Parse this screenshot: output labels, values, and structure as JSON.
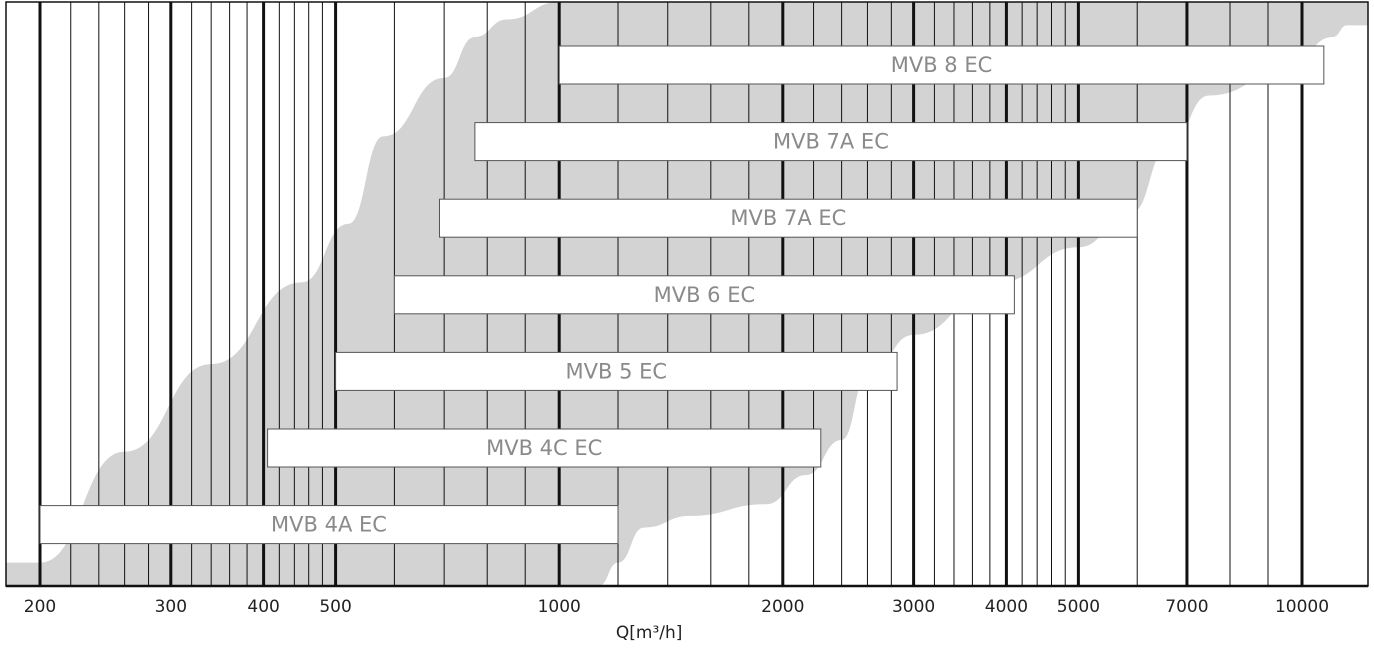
{
  "chart_data": {
    "type": "bar",
    "orientation": "horizontal-range",
    "title": "",
    "xlabel": "Q[m³/h]",
    "ylabel": "",
    "x_scale": "log",
    "xlim": [
      190,
      11500
    ],
    "x_ticks": [
      200,
      300,
      400,
      500,
      1000,
      2000,
      3000,
      4000,
      5000,
      7000,
      10000
    ],
    "x_tick_labels": [
      "200",
      "300",
      "400",
      "500",
      "1000",
      "2000",
      "3000",
      "4000",
      "5000",
      "7000",
      "10000"
    ],
    "major_gridlines": [
      200,
      300,
      400,
      500,
      1000,
      2000,
      3000,
      4000,
      5000,
      7000,
      10000
    ],
    "minor_gridlines": [
      220,
      240,
      260,
      280,
      320,
      340,
      360,
      380,
      420,
      440,
      460,
      480,
      600,
      700,
      800,
      900,
      1200,
      1400,
      1600,
      1800,
      2200,
      2400,
      2600,
      2800,
      3200,
      3400,
      3600,
      3800,
      4200,
      4400,
      4600,
      4800,
      6000,
      8000,
      9000
    ],
    "grid": true,
    "bars": [
      {
        "label": "MVB 8 EC",
        "start": 1000,
        "end": 10700
      },
      {
        "label": "MVB 7A EC",
        "start": 770,
        "end": 7000
      },
      {
        "label": "MVB 7A EC",
        "start": 690,
        "end": 6000
      },
      {
        "label": "MVB 6 EC",
        "start": 600,
        "end": 4100
      },
      {
        "label": "MVB 5 EC",
        "start": 500,
        "end": 2850
      },
      {
        "label": "MVB 4C EC",
        "start": 405,
        "end": 2250
      },
      {
        "label": "MVB 4A EC",
        "start": 200,
        "end": 1200
      }
    ],
    "envelope": {
      "description_color": "#d3d3d3",
      "upper_edge": [
        [
          200,
          0.04
        ],
        [
          260,
          0.23
        ],
        [
          340,
          0.38
        ],
        [
          450,
          0.52
        ],
        [
          520,
          0.62
        ],
        [
          580,
          0.77
        ],
        [
          700,
          0.87
        ],
        [
          770,
          0.94
        ],
        [
          850,
          0.97
        ],
        [
          1000,
          1.0
        ]
      ],
      "lower_edge": [
        [
          1130,
          0.0
        ],
        [
          1200,
          0.04
        ],
        [
          1300,
          0.1
        ],
        [
          1500,
          0.12
        ],
        [
          1900,
          0.14
        ],
        [
          2150,
          0.19
        ],
        [
          2400,
          0.25
        ],
        [
          2600,
          0.36
        ],
        [
          3000,
          0.43
        ],
        [
          3900,
          0.52
        ],
        [
          5000,
          0.58
        ],
        [
          5900,
          0.64
        ],
        [
          6600,
          0.75
        ],
        [
          7500,
          0.84
        ],
        [
          9500,
          0.88
        ],
        [
          11000,
          0.94
        ],
        [
          11500,
          0.96
        ]
      ],
      "fill_color": "#d3d3d3"
    },
    "colors": {
      "bar_fill": "#ffffff",
      "bar_stroke": "#555555",
      "label_color": "#8a8a8a",
      "gridline": "#111111"
    }
  }
}
